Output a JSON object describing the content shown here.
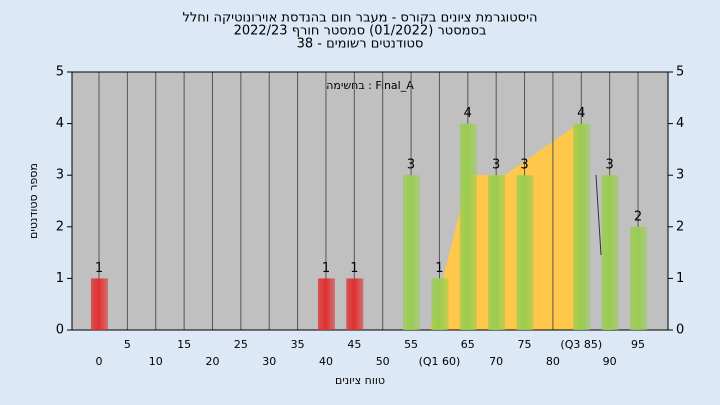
{
  "chart_data": {
    "type": "bar",
    "title": [
      "היסטוגרמת ציונים בקורס - מעבר חום בהנדסת אוירונוטיקה וחלל",
      "בסמסטר  (01/2022)  סמסטר חורף 2022/23",
      "סטודנטים רשומים - 38"
    ],
    "annotation": "Final_A : בחשימה",
    "x_label": "טווח ציונים",
    "y_label": "מספר סטודנטים",
    "categories": [
      "0",
      "5",
      "10",
      "15",
      "20",
      "25",
      "30",
      "35",
      "40",
      "45",
      "50",
      "55",
      "(Q1 60)",
      "65",
      "70",
      "75",
      "80",
      "(Q3 85)",
      "90",
      "95"
    ],
    "values": [
      1,
      0,
      0,
      0,
      0,
      0,
      0,
      0,
      1,
      1,
      0,
      3,
      1,
      4,
      3,
      3,
      0,
      4,
      3,
      2
    ],
    "colors": [
      "#e03030",
      "#e03030",
      "#e03030",
      "#e03030",
      "#e03030",
      "#e03030",
      "#e03030",
      "#e03030",
      "#e03030",
      "#e03030",
      "#e03030",
      "#9acd50",
      "#9acd50",
      "#9acd50",
      "#9acd50",
      "#9acd50",
      "#9acd50",
      "#9acd50",
      "#9acd50",
      "#9acd50"
    ],
    "ylim": [
      0,
      5
    ],
    "yticks": [
      0,
      1,
      2,
      3,
      4,
      5
    ],
    "grid": true
  }
}
